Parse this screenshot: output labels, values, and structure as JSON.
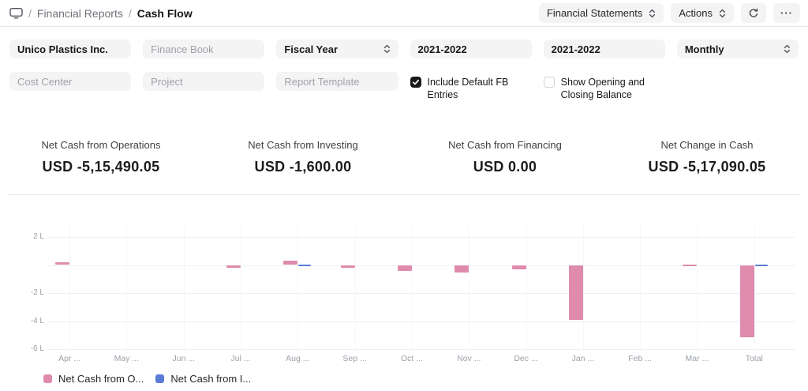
{
  "topbar": {
    "breadcrumb": {
      "separator": "/",
      "section": "Financial Reports",
      "page": "Cash Flow"
    },
    "financial_statements_label": "Financial Statements",
    "actions_label": "Actions",
    "more_label": "···"
  },
  "filters": {
    "row1": [
      {
        "id": "company",
        "text": "Unico Plastics Inc.",
        "state": "filled",
        "kind": "input"
      },
      {
        "id": "finance-book",
        "text": "Finance Book",
        "state": "placeholder",
        "kind": "input"
      },
      {
        "id": "period-basis",
        "text": "Fiscal Year",
        "state": "filled",
        "kind": "select"
      },
      {
        "id": "from-year",
        "text": "2021-2022",
        "state": "filled",
        "kind": "input"
      },
      {
        "id": "to-year",
        "text": "2021-2022",
        "state": "filled",
        "kind": "input"
      },
      {
        "id": "interval",
        "text": "Monthly",
        "state": "filled",
        "kind": "select"
      }
    ],
    "row2": [
      {
        "id": "cost-center",
        "text": "Cost Center",
        "state": "placeholder",
        "kind": "input"
      },
      {
        "id": "project",
        "text": "Project",
        "state": "placeholder",
        "kind": "input"
      },
      {
        "id": "report-template",
        "text": "Report Template",
        "state": "placeholder",
        "kind": "input"
      }
    ],
    "checkboxes": [
      {
        "id": "include-default-fb-entries",
        "label": "Include Default FB Entries",
        "checked": true
      },
      {
        "id": "show-opening-closing-balance",
        "label": "Show Opening and Closing Balance",
        "checked": false
      }
    ]
  },
  "summary": [
    {
      "label": "Net Cash from Operations",
      "value": "USD -5,15,490.05"
    },
    {
      "label": "Net Cash from Investing",
      "value": "USD -1,600.00"
    },
    {
      "label": "Net Cash from Financing",
      "value": "USD 0.00"
    },
    {
      "label": "Net Change in Cash",
      "value": "USD -5,17,090.05"
    }
  ],
  "chart_data": {
    "type": "bar",
    "unit": "L",
    "categories": [
      "Apr ...",
      "May ...",
      "Jun ...",
      "Jul ...",
      "Aug ...",
      "Sep ...",
      "Oct ...",
      "Nov ...",
      "Dec ...",
      "Jan ...",
      "Feb ...",
      "Mar ...",
      "Total"
    ],
    "series": [
      {
        "name": "Net Cash from O...",
        "color": "#de8bac",
        "values": [
          0.22,
          0,
          0,
          -0.18,
          0.3,
          -0.22,
          -0.42,
          -0.55,
          -0.32,
          -3.92,
          0,
          0.04,
          -5.15
        ]
      },
      {
        "name": "Net Cash from I...",
        "color": "#5a7bd5",
        "values": [
          0,
          0,
          0,
          0,
          -0.02,
          0,
          0,
          0,
          0,
          0,
          0,
          0,
          -0.02
        ]
      }
    ],
    "y_ticks": [
      {
        "value": 2,
        "label": "2 L"
      },
      {
        "value": -2,
        "label": "-2 L"
      },
      {
        "value": -4,
        "label": "-4 L"
      },
      {
        "value": -6,
        "label": "-6 L"
      }
    ],
    "ylim": [
      -6.6,
      2.6
    ],
    "grid": true,
    "legend_position": "bottom-left"
  }
}
